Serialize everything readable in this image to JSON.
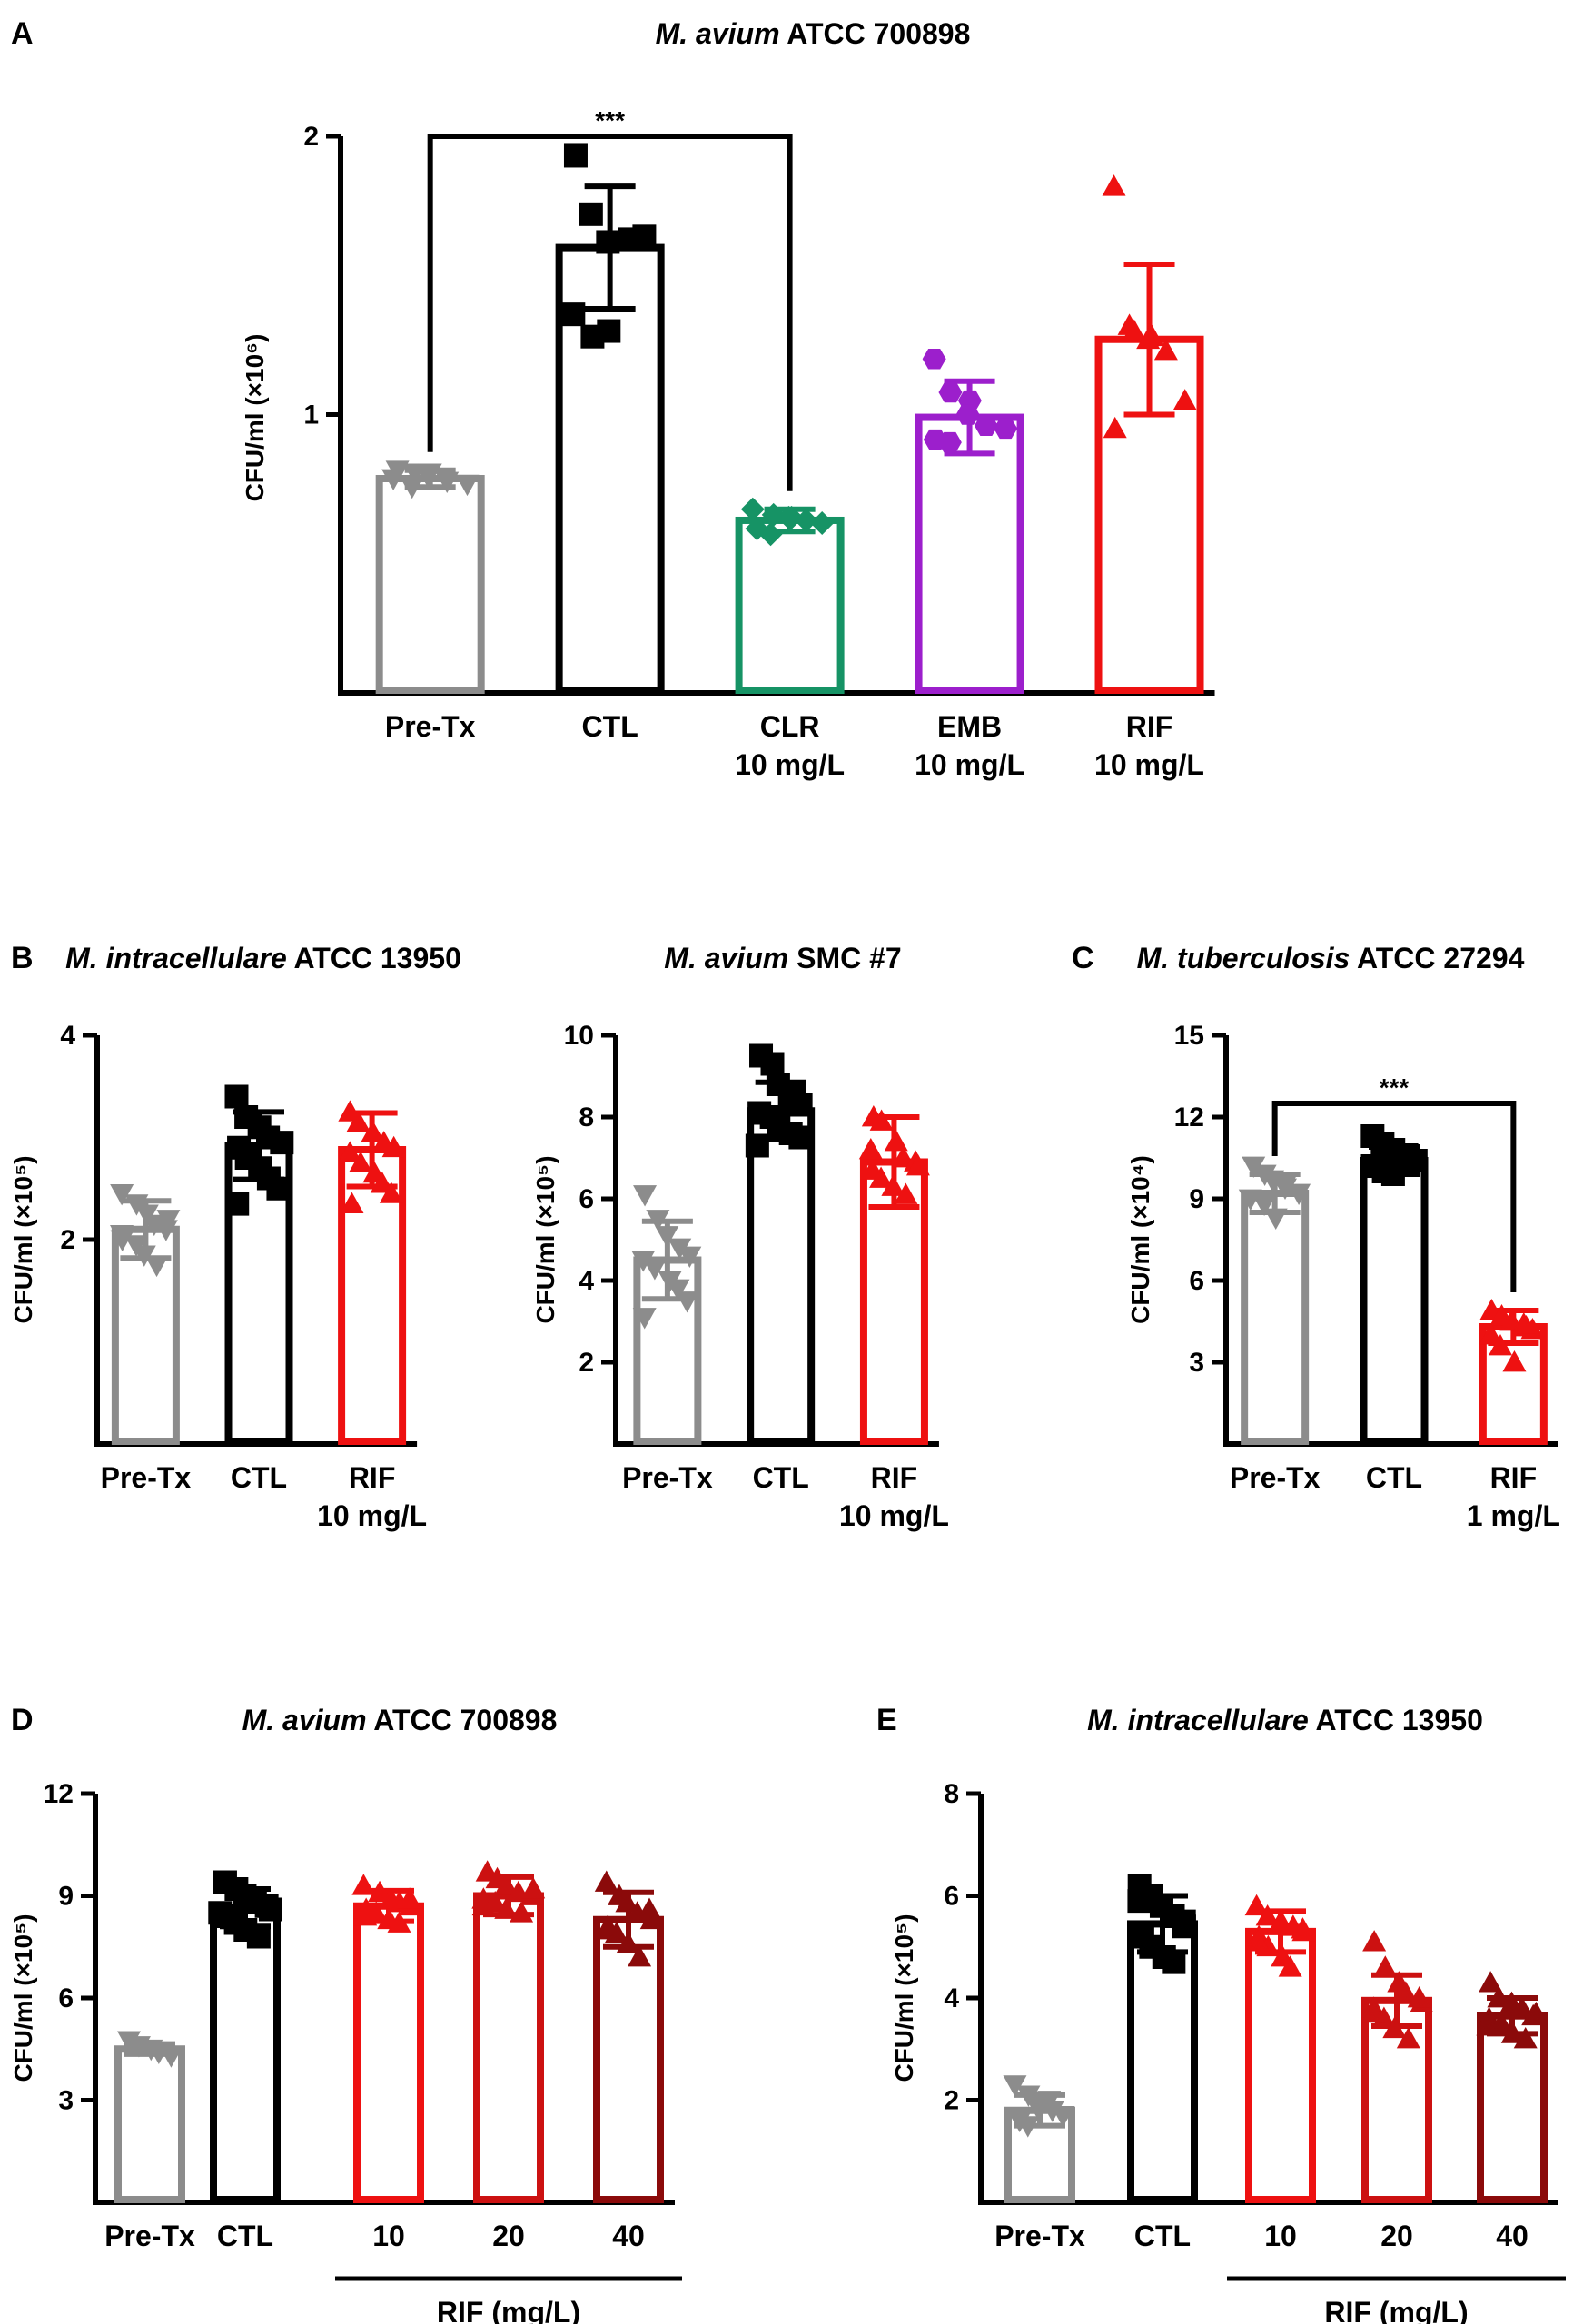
{
  "chart_data": [
    {
      "id": "A",
      "type": "bar",
      "panel_label": "A",
      "title_italic": "M. avium",
      "title_rest": " ATCC 700898",
      "ylabel": "CFU/ml (×10⁶)",
      "ylim": [
        0,
        2
      ],
      "yticks": [
        1,
        2
      ],
      "categories": [
        [
          "Pre-Tx"
        ],
        [
          "CTL"
        ],
        [
          "CLR",
          "10 mg/L"
        ],
        [
          "EMB",
          "10 mg/L"
        ],
        [
          "RIF",
          "10 mg/L"
        ]
      ],
      "means": [
        0.77,
        1.6,
        0.62,
        0.99,
        1.27
      ],
      "errors": [
        0.03,
        0.22,
        0.04,
        0.13,
        0.27
      ],
      "colors": [
        "#8c8c8c",
        "#000000",
        "#169365",
        "#9c1fcc",
        "#ee1111"
      ],
      "markers": [
        "tri-down",
        "square",
        "diamond",
        "hexagon",
        "tri-up"
      ],
      "points": [
        [
          0.8,
          0.79,
          0.78,
          0.76,
          0.75,
          0.77,
          0.74,
          0.79
        ],
        [
          1.93,
          1.72,
          1.62,
          1.63,
          1.64,
          1.36,
          1.28,
          1.3
        ],
        [
          0.66,
          0.64,
          0.63,
          0.62,
          0.61,
          0.59,
          0.57,
          0.63
        ],
        [
          1.2,
          1.08,
          1.05,
          0.96,
          0.95,
          0.91,
          0.9,
          1.0
        ],
        [
          1.82,
          1.32,
          1.28,
          1.23,
          1.05,
          0.95,
          1.3,
          1.27
        ]
      ],
      "significance": [
        {
          "from": 0,
          "to": 2,
          "label": "***",
          "y": 2.0
        }
      ]
    },
    {
      "id": "B1",
      "type": "bar",
      "panel_label": "B",
      "title_italic": "M. intracellulare",
      "title_rest": " ATCC 13950",
      "ylabel": "CFU/ml (×10⁵)",
      "ylim": [
        0,
        4
      ],
      "yticks": [
        2,
        4
      ],
      "categories": [
        [
          "Pre-Tx"
        ],
        [
          "CTL"
        ],
        [
          "RIF",
          "10 mg/L"
        ]
      ],
      "means": [
        2.1,
        2.92,
        2.88
      ],
      "errors": [
        0.28,
        0.33,
        0.36
      ],
      "colors": [
        "#8c8c8c",
        "#000000",
        "#ee1111"
      ],
      "markers": [
        "tri-down",
        "square",
        "tri-up"
      ],
      "points": [
        [
          2.45,
          2.35,
          2.25,
          2.15,
          2.1,
          2.05,
          1.95,
          1.85,
          1.75,
          2.2,
          2.0
        ],
        [
          3.4,
          3.2,
          3.1,
          3.0,
          2.95,
          2.9,
          2.8,
          2.7,
          2.6,
          2.5,
          2.35
        ],
        [
          3.25,
          3.15,
          3.05,
          2.95,
          2.9,
          2.85,
          2.75,
          2.65,
          2.55,
          2.45,
          2.35
        ]
      ],
      "significance": []
    },
    {
      "id": "B2",
      "type": "bar",
      "panel_label": "",
      "title_italic": "M. avium",
      "title_rest": " SMC #7",
      "ylabel": "CFU/ml (×10⁵)",
      "ylim": [
        0,
        10
      ],
      "yticks": [
        2,
        4,
        6,
        8,
        10
      ],
      "categories": [
        [
          "Pre-Tx"
        ],
        [
          "CTL"
        ],
        [
          "RIF",
          "10 mg/L"
        ]
      ],
      "means": [
        4.5,
        8.15,
        6.9
      ],
      "errors": [
        0.95,
        0.7,
        1.1
      ],
      "colors": [
        "#8c8c8c",
        "#000000",
        "#ee1111"
      ],
      "markers": [
        "tri-down",
        "square",
        "tri-up"
      ],
      "points": [
        [
          6.1,
          5.5,
          5.1,
          4.8,
          4.6,
          4.5,
          4.3,
          4.0,
          3.8,
          3.5,
          3.1
        ],
        [
          9.5,
          9.3,
          8.8,
          8.5,
          8.3,
          8.1,
          8.0,
          7.8,
          7.6,
          7.5,
          7.3
        ],
        [
          8.0,
          7.9,
          7.4,
          7.0,
          6.9,
          6.7,
          6.5,
          6.3,
          6.1,
          6.8,
          7.2
        ]
      ],
      "significance": []
    },
    {
      "id": "C",
      "type": "bar",
      "panel_label": "C",
      "title_italic": "M. tuberculosis",
      "title_rest": " ATCC 27294",
      "ylabel": "CFU/ml (×10⁴)",
      "ylim": [
        0,
        15
      ],
      "yticks": [
        3,
        6,
        9,
        12,
        15
      ],
      "categories": [
        [
          "Pre-Tx"
        ],
        [
          "CTL"
        ],
        [
          "RIF",
          "1 mg/L"
        ]
      ],
      "means": [
        9.2,
        10.4,
        4.3
      ],
      "errors": [
        0.7,
        0.5,
        0.6
      ],
      "colors": [
        "#8c8c8c",
        "#000000",
        "#ee1111"
      ],
      "markers": [
        "tri-down",
        "square",
        "tri-up"
      ],
      "points": [
        [
          10.2,
          9.9,
          9.7,
          9.4,
          9.2,
          9.0,
          8.8,
          8.3,
          9.5
        ],
        [
          11.3,
          11.0,
          10.8,
          10.6,
          10.4,
          10.2,
          10.0,
          9.9,
          10.5
        ],
        [
          4.9,
          4.7,
          4.5,
          4.3,
          4.2,
          4.0,
          3.6,
          3.0,
          4.4
        ]
      ],
      "significance": [
        {
          "from": 0,
          "to": 2,
          "label": "***",
          "y": 12.5
        }
      ]
    },
    {
      "id": "D",
      "type": "bar",
      "panel_label": "D",
      "title_italic": "M. avium",
      "title_rest": " ATCC 700898",
      "ylabel": "CFU/ml (×10⁵)",
      "ylim": [
        0,
        12
      ],
      "yticks": [
        3,
        6,
        9,
        12
      ],
      "categories": [
        [
          "Pre-Tx"
        ],
        [
          "CTL"
        ],
        [
          "10"
        ],
        [
          "20"
        ],
        [
          "40"
        ]
      ],
      "means": [
        4.5,
        8.65,
        8.7,
        9.0,
        8.3
      ],
      "errors": [
        0.15,
        0.55,
        0.45,
        0.55,
        0.8
      ],
      "colors": [
        "#8c8c8c",
        "#000000",
        "#ee1111",
        "#cc1111",
        "#8b0a0a"
      ],
      "markers": [
        "tri-down",
        "square",
        "tri-up",
        "tri-up",
        "tri-up"
      ],
      "points": [
        [
          4.75,
          4.6,
          4.5,
          4.4,
          4.3
        ],
        [
          9.4,
          9.2,
          9.0,
          8.8,
          8.6,
          8.4,
          8.2,
          8.0,
          7.8,
          8.7,
          8.5
        ],
        [
          9.3,
          9.1,
          8.9,
          8.8,
          8.7,
          8.6,
          8.5,
          8.3,
          8.2,
          8.9,
          8.4
        ],
        [
          9.7,
          9.5,
          9.3,
          9.1,
          9.0,
          8.9,
          8.8,
          8.6,
          8.5,
          9.2,
          8.7
        ],
        [
          9.4,
          9.0,
          8.8,
          8.5,
          8.3,
          8.1,
          7.9,
          7.6,
          7.2,
          8.6,
          8.0
        ]
      ],
      "significance": [],
      "group_label": "RIF (mg/L)",
      "group_span": [
        2,
        4
      ]
    },
    {
      "id": "E",
      "type": "bar",
      "panel_label": "E",
      "title_italic": "M. intracellulare",
      "title_rest": " ATCC 13950",
      "ylabel": "CFU/ml (×10⁵)",
      "ylim": [
        0,
        8
      ],
      "yticks": [
        2,
        4,
        6,
        8
      ],
      "categories": [
        [
          "Pre-Tx"
        ],
        [
          "CTL"
        ],
        [
          "10"
        ],
        [
          "20"
        ],
        [
          "40"
        ]
      ],
      "means": [
        1.8,
        5.45,
        5.3,
        3.95,
        3.65
      ],
      "errors": [
        0.3,
        0.55,
        0.4,
        0.5,
        0.35
      ],
      "colors": [
        "#8c8c8c",
        "#000000",
        "#ee1111",
        "#cc1111",
        "#8b0a0a"
      ],
      "markers": [
        "tri-down",
        "square",
        "tri-up",
        "tri-up",
        "tri-up"
      ],
      "points": [
        [
          2.3,
          2.1,
          1.9,
          1.8,
          1.7,
          1.6,
          1.5,
          1.85,
          2.0
        ],
        [
          6.2,
          6.0,
          5.8,
          5.6,
          5.4,
          5.2,
          5.0,
          4.8,
          4.7,
          5.5,
          5.9
        ],
        [
          5.8,
          5.6,
          5.5,
          5.4,
          5.3,
          5.2,
          5.0,
          4.8,
          4.6,
          5.35,
          5.1
        ],
        [
          5.1,
          4.6,
          4.3,
          4.1,
          3.9,
          3.8,
          3.6,
          3.4,
          3.2,
          4.0,
          3.7
        ],
        [
          4.3,
          4.0,
          3.9,
          3.8,
          3.7,
          3.6,
          3.5,
          3.3,
          3.2,
          3.65,
          3.45
        ]
      ],
      "significance": [],
      "group_label": "RIF (mg/L)",
      "group_span": [
        2,
        4
      ]
    }
  ]
}
